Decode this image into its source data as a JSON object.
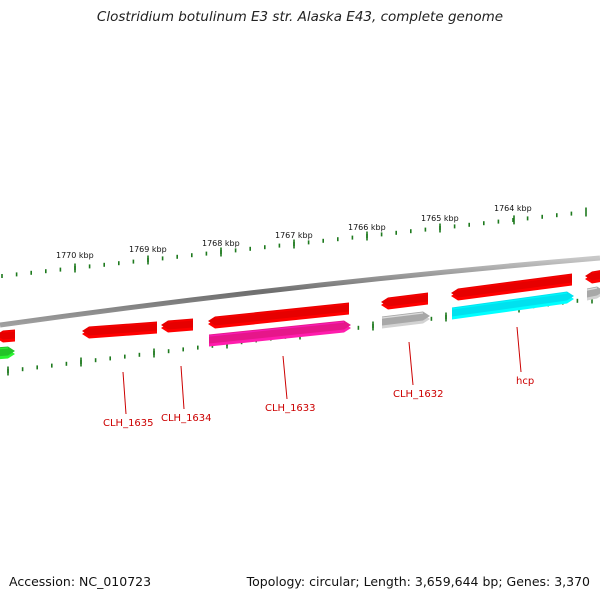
{
  "title": "Clostridium botulinum E3 str. Alaska E43, complete genome",
  "accession": "Accession: NC_010723",
  "summary": "Topology: circular; Length: 3,659,644 bp; Genes: 3,370",
  "scale_labels": [
    "1770 kbp",
    "1769 kbp",
    "1768 kbp",
    "1767 kbp",
    "1766 kbp",
    "1765 kbp",
    "1764 kbp"
  ],
  "gene_labels": [
    "CLH_1635",
    "CLH_1634",
    "CLH_1633",
    "CLH_1632",
    "hcp"
  ],
  "colors": {
    "red": "#e60000",
    "magenta": "#e6168a",
    "grey": "#a8a8a8",
    "cyan": "#00e1ef",
    "green": "#22c428",
    "backbone": "#888888",
    "tick": "#1e7a1e",
    "label": "#cc0000"
  }
}
